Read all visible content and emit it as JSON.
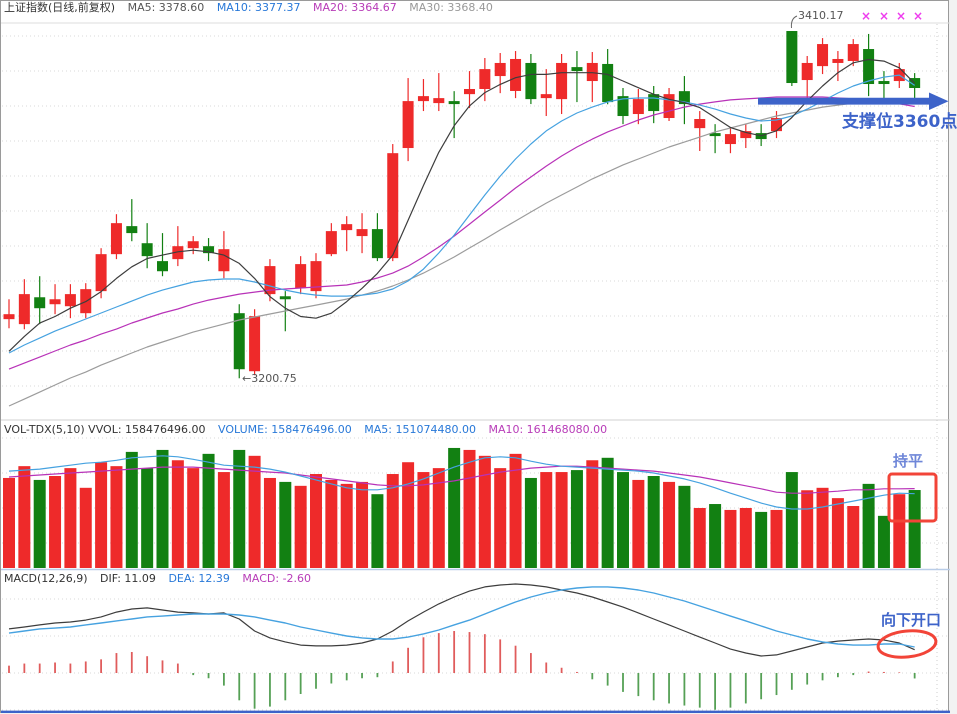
{
  "window_title": "上证指数(日线,前复权)",
  "price_header": {
    "title": "上证指数(日线,前复权)",
    "ma5": "MA5: 3378.60",
    "ma10": "MA10: 3377.37",
    "ma20": "MA20: 3364.67",
    "ma30": "MA30: 3368.40"
  },
  "volume_header": {
    "label": "VOL-TDX(5,10) VVOL: 158476496.00",
    "volume": "VOLUME: 158476496.00",
    "ma5": "MA5: 151074480.00",
    "ma10": "MA10: 161468080.00"
  },
  "macd_header": {
    "label": "MACD(12,26,9)",
    "dif": "DIF: 11.09",
    "dea": "DEA: 12.39",
    "macd": "MACD: -2.60"
  },
  "annotations": {
    "high_label": "3410.17",
    "low_label": "←3200.75",
    "support_text": "支撑位3360点",
    "flat_text": "持平",
    "open_down_text": "向下开口",
    "cross_mark_char": "×",
    "cross_mark_count": 4
  },
  "colors": {
    "candle_up_red": "#ee2a2a",
    "candle_down_green": "#128012",
    "ma5_line": "#3d3d3d",
    "ma10_line": "#46a2e0",
    "ma20_line": "#b832b8",
    "ma30_line": "#9c9c9c",
    "macd_dif": "#3d3d3d",
    "macd_dea": "#46a2e0",
    "hist_positive": "#e05c5c",
    "hist_negative": "#55a055",
    "annotation_blue": "#3d63c9",
    "annotation_blue_light": "#6e86d8",
    "annotation_red": "#f24438",
    "cross_mark_magenta": "#ee3cee",
    "grid": "#d9d9d9",
    "label_gray": "#555555"
  },
  "chart_data": {
    "type": "candlestick+volume+macd",
    "title": "上证指数(日线,前复权)",
    "legend": [
      "MA5",
      "MA10",
      "MA20",
      "MA30"
    ],
    "layout_hints": {
      "panels": [
        "price",
        "volume",
        "macd"
      ],
      "bars": 60,
      "grid": "dotted-horizontal",
      "price_ylim": [
        3178,
        3415
      ],
      "volume_unit": "millions of shares",
      "high_annotation": 3410.17,
      "low_annotation": 3200.75,
      "support_level": 3360
    },
    "candles_ohlc": [
      [
        3236.4,
        3248.4,
        3230.9,
        3239.4
      ],
      [
        3233.4,
        3260.5,
        3230.3,
        3251.5
      ],
      [
        3249.6,
        3262.3,
        3233.4,
        3243.0
      ],
      [
        3245.4,
        3257.5,
        3239.4,
        3248.4
      ],
      [
        3244.2,
        3257.5,
        3237.0,
        3251.5
      ],
      [
        3240.0,
        3258.1,
        3237.0,
        3254.5
      ],
      [
        3253.3,
        3279.2,
        3249.0,
        3275.6
      ],
      [
        3275.6,
        3299.7,
        3272.6,
        3294.3
      ],
      [
        3292.5,
        3308.8,
        3283.4,
        3288.3
      ],
      [
        3282.2,
        3294.3,
        3267.1,
        3274.4
      ],
      [
        3271.4,
        3288.3,
        3262.3,
        3265.3
      ],
      [
        3272.6,
        3292.5,
        3268.4,
        3280.4
      ],
      [
        3279.2,
        3286.5,
        3275.6,
        3283.4
      ],
      [
        3280.4,
        3285.3,
        3271.4,
        3276.2
      ],
      [
        3265.3,
        3289.5,
        3261.1,
        3278.6
      ],
      [
        3240.0,
        3245.4,
        3200.75,
        3206.2
      ],
      [
        3205.0,
        3242.4,
        3202.6,
        3238.2
      ],
      [
        3251.5,
        3272.6,
        3247.2,
        3268.4
      ],
      [
        3250.2,
        3253.3,
        3229.1,
        3248.4
      ],
      [
        3255.1,
        3274.4,
        3251.5,
        3269.6
      ],
      [
        3253.3,
        3276.2,
        3249.0,
        3271.4
      ],
      [
        3275.6,
        3294.3,
        3274.4,
        3289.5
      ],
      [
        3290.1,
        3298.5,
        3277.4,
        3293.7
      ],
      [
        3286.5,
        3300.3,
        3276.2,
        3290.7
      ],
      [
        3290.7,
        3300.3,
        3271.4,
        3273.2
      ],
      [
        3273.2,
        3342.0,
        3271.4,
        3336.5
      ],
      [
        3339.6,
        3381.8,
        3331.7,
        3367.9
      ],
      [
        3367.9,
        3381.2,
        3361.9,
        3370.9
      ],
      [
        3366.7,
        3384.8,
        3361.9,
        3369.7
      ],
      [
        3367.9,
        3373.9,
        3345.6,
        3366.1
      ],
      [
        3372.1,
        3386.0,
        3363.7,
        3375.2
      ],
      [
        3375.2,
        3393.9,
        3367.9,
        3387.2
      ],
      [
        3383.0,
        3396.9,
        3372.7,
        3390.9
      ],
      [
        3374.0,
        3398.1,
        3369.7,
        3393.3
      ],
      [
        3390.9,
        3396.3,
        3366.1,
        3369.1
      ],
      [
        3369.7,
        3387.2,
        3358.9,
        3372.1
      ],
      [
        3369.1,
        3396.3,
        3360.1,
        3390.9
      ],
      [
        3388.4,
        3398.1,
        3367.3,
        3386.0
      ],
      [
        3380.0,
        3397.5,
        3367.3,
        3390.9
      ],
      [
        3390.3,
        3399.3,
        3366.0,
        3367.3
      ],
      [
        3370.9,
        3375.8,
        3354.0,
        3358.9
      ],
      [
        3360.1,
        3375.2,
        3354.0,
        3369.1
      ],
      [
        3372.1,
        3377.0,
        3354.6,
        3361.9
      ],
      [
        3357.7,
        3375.8,
        3355.9,
        3372.1
      ],
      [
        3373.9,
        3383.0,
        3354.0,
        3366.1
      ],
      [
        3351.6,
        3361.9,
        3337.8,
        3357.1
      ],
      [
        3348.6,
        3354.0,
        3336.5,
        3346.8
      ],
      [
        3342.0,
        3351.6,
        3336.5,
        3348.0
      ],
      [
        3345.6,
        3354.0,
        3339.6,
        3349.8
      ],
      [
        3348.6,
        3354.0,
        3340.8,
        3345.0
      ],
      [
        3349.8,
        3361.9,
        3345.6,
        3357.7
      ],
      [
        3410.17,
        3410.17,
        3377.0,
        3378.8
      ],
      [
        3380.6,
        3395.1,
        3366.7,
        3390.9
      ],
      [
        3389.0,
        3405.9,
        3384.2,
        3402.3
      ],
      [
        3390.9,
        3398.1,
        3380.0,
        3393.3
      ],
      [
        3392.1,
        3405.3,
        3389.0,
        3402.3
      ],
      [
        3399.3,
        3408.4,
        3370.9,
        3378.2
      ],
      [
        3380.0,
        3386.0,
        3369.1,
        3378.2
      ],
      [
        3380.0,
        3390.9,
        3375.8,
        3387.2
      ],
      [
        3381.8,
        3384.8,
        3367.9,
        3375.8
      ]
    ],
    "ma5": [
      3217,
      3226,
      3234,
      3238,
      3243,
      3247,
      3253,
      3261,
      3268,
      3273,
      3275,
      3277,
      3278,
      3277,
      3275,
      3270,
      3261,
      3250,
      3243,
      3238,
      3237,
      3240,
      3247,
      3255,
      3264,
      3275,
      3296,
      3317,
      3337,
      3353,
      3365,
      3373,
      3378,
      3382,
      3384,
      3384,
      3385,
      3385,
      3385,
      3384,
      3380,
      3376,
      3372,
      3369,
      3367,
      3364,
      3358,
      3352,
      3349,
      3347,
      3350,
      3358,
      3368,
      3377,
      3385,
      3391,
      3393,
      3392,
      3388,
      3378.6
    ],
    "ma10": [
      3216,
      3220.8,
      3225,
      3229.2,
      3232.8,
      3236.5,
      3240.1,
      3243.7,
      3247.3,
      3250.9,
      3253.9,
      3256.4,
      3258.8,
      3260,
      3260.6,
      3260.6,
      3258.8,
      3256.4,
      3253.9,
      3252.1,
      3250.9,
      3250.3,
      3250.3,
      3250.9,
      3252.1,
      3254.6,
      3259.4,
      3266.6,
      3276.3,
      3287.1,
      3299.2,
      3311.3,
      3322.7,
      3333,
      3342,
      3349.9,
      3355.9,
      3360.7,
      3364.3,
      3367.4,
      3369.2,
      3369.8,
      3369.8,
      3368.6,
      3367.4,
      3365.5,
      3363.1,
      3360.1,
      3357.7,
      3355.9,
      3356.5,
      3358.9,
      3363.1,
      3367.9,
      3372.8,
      3377,
      3380,
      3382.4,
      3383.6,
      3377.37
    ],
    "ma20": [
      3206.3,
      3209.9,
      3213.5,
      3217.2,
      3220.8,
      3223.8,
      3227.4,
      3230.4,
      3234.1,
      3237.1,
      3240.1,
      3242.5,
      3245.5,
      3247.9,
      3249.7,
      3251.5,
      3252.7,
      3253.9,
      3254.6,
      3255.2,
      3255.8,
      3256.4,
      3257,
      3258.8,
      3261.2,
      3264.2,
      3268.4,
      3273.9,
      3279.9,
      3286.5,
      3293.7,
      3301,
      3308.2,
      3315.5,
      3322.1,
      3328.7,
      3334.8,
      3340.2,
      3345,
      3349.3,
      3352.9,
      3356.5,
      3359.5,
      3361.9,
      3364.3,
      3366.1,
      3367.4,
      3368.6,
      3369.2,
      3369.8,
      3370.4,
      3370.4,
      3370.4,
      3370.4,
      3369.8,
      3369.2,
      3368.6,
      3367.9,
      3366.3,
      3364.67
    ],
    "ma30": [
      3184,
      3188.2,
      3192.4,
      3196.7,
      3200.9,
      3204.5,
      3208.7,
      3212.3,
      3216,
      3219.6,
      3222.6,
      3225.6,
      3228.6,
      3231,
      3233.4,
      3235.9,
      3237.7,
      3239.5,
      3241.3,
      3243.1,
      3244.9,
      3246.7,
      3248.5,
      3250.9,
      3253.4,
      3256.4,
      3260,
      3264.2,
      3269,
      3273.9,
      3279.3,
      3284.7,
      3290.2,
      3295.6,
      3301,
      3306.4,
      3311.3,
      3316.1,
      3321,
      3325.2,
      3329.4,
      3333,
      3336.6,
      3340.2,
      3343.2,
      3346.2,
      3349.3,
      3351.7,
      3354.1,
      3356.5,
      3358.9,
      3360.7,
      3362.5,
      3364.3,
      3365.5,
      3366.7,
      3367.9,
      3368.5,
      3369.1,
      3368.4
    ],
    "volume_millions": [
      183,
      207,
      179,
      187,
      203,
      163,
      215,
      207,
      236,
      203,
      240,
      219,
      203,
      232,
      195,
      240,
      228,
      183,
      175,
      167,
      191,
      179,
      171,
      175,
      150,
      191,
      215,
      195,
      203,
      244,
      240,
      228,
      203,
      232,
      183,
      195,
      195,
      199,
      219,
      224,
      195,
      179,
      187,
      175,
      167,
      122,
      130,
      118,
      122,
      114,
      118,
      195,
      158,
      163,
      142,
      126,
      171,
      106,
      150,
      158.48
    ],
    "volume_ma5_millions": [
      197,
      199,
      201,
      205,
      209,
      213,
      215,
      219,
      224,
      226,
      228,
      226,
      221,
      215,
      209,
      207,
      205,
      201,
      195,
      187,
      179,
      171,
      163,
      159,
      159,
      163,
      171,
      181,
      193,
      205,
      215,
      224,
      226,
      224,
      217,
      211,
      207,
      205,
      203,
      201,
      199,
      197,
      193,
      187,
      181,
      173,
      163,
      152,
      142,
      132,
      124,
      120,
      120,
      124,
      130,
      136,
      142,
      148,
      152,
      151.07
    ],
    "volume_ma10_millions": [
      185,
      187,
      189,
      191,
      193,
      195,
      197,
      199,
      201,
      203,
      205,
      205,
      205,
      203,
      201,
      199,
      197,
      195,
      193,
      189,
      185,
      181,
      177,
      173,
      169,
      167,
      167,
      169,
      173,
      177,
      183,
      189,
      195,
      199,
      203,
      205,
      207,
      207,
      205,
      203,
      201,
      199,
      197,
      193,
      189,
      185,
      179,
      173,
      167,
      161,
      154,
      152,
      152,
      154,
      156,
      159,
      159,
      161,
      161,
      161.47
    ],
    "macd_dif": [
      21,
      21.9,
      22.9,
      23.8,
      24.3,
      25.2,
      26.7,
      29,
      30.5,
      31,
      30,
      29,
      28.6,
      28.1,
      28.6,
      25.7,
      20,
      16.7,
      14.8,
      13.3,
      12.9,
      12.9,
      13.3,
      14.3,
      16.2,
      20,
      24.8,
      29,
      32.9,
      36.2,
      39,
      41,
      41.9,
      42.4,
      41.9,
      41,
      39.5,
      38.1,
      36.2,
      33.8,
      31.4,
      28.6,
      25.7,
      22.9,
      20,
      17.1,
      14.3,
      11.4,
      9.5,
      8.1,
      8.6,
      10.5,
      12.4,
      14.3,
      15.2,
      15.7,
      16.2,
      15.7,
      14.3,
      11.09
    ],
    "macd_dea": [
      19,
      20,
      21,
      21.4,
      21.9,
      22.9,
      23.8,
      24.8,
      25.7,
      26.7,
      27.1,
      27.6,
      28.1,
      28.1,
      28.1,
      27.6,
      26.7,
      25.2,
      23.8,
      21.9,
      20.5,
      19,
      17.6,
      16.7,
      16.2,
      16.2,
      17.1,
      18.6,
      20.5,
      22.9,
      25.2,
      28.1,
      31,
      33.8,
      36.2,
      38.1,
      39.5,
      40.5,
      41,
      41,
      40.5,
      39.5,
      38.1,
      36.2,
      34.3,
      31.9,
      29.5,
      27.1,
      24.8,
      22.4,
      20,
      18.1,
      16.2,
      14.8,
      13.8,
      13.3,
      13.3,
      13.8,
      13.8,
      12.39
    ],
    "macd_hist": [
      3.5,
      4.5,
      4.5,
      5,
      4.5,
      5.5,
      6.5,
      9.5,
      10,
      8,
      6,
      4.5,
      -1,
      -2.5,
      -6,
      -13,
      -17,
      -16,
      -13,
      -10,
      -7.5,
      -5,
      -3.5,
      -2.5,
      -2,
      5.5,
      12,
      17,
      19,
      20,
      19.5,
      18.5,
      16,
      13,
      9.5,
      5,
      2.5,
      0.5,
      -3,
      -6,
      -9,
      -11,
      -13,
      -14.5,
      -15.5,
      -16.5,
      -17.5,
      -16.5,
      -14.5,
      -12.5,
      -10.5,
      -8,
      -5.5,
      -3.5,
      -2,
      -1,
      0.7,
      0.5,
      0.3,
      -2.6
    ]
  }
}
